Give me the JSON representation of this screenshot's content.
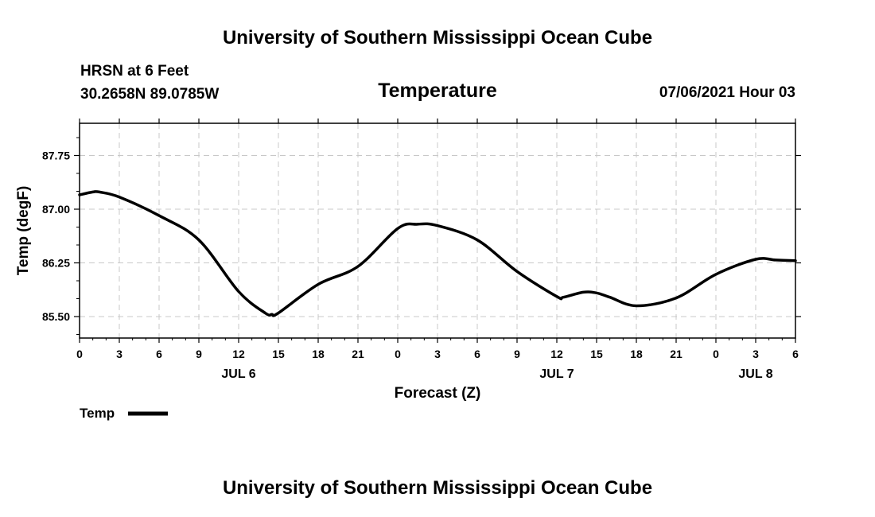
{
  "header": {
    "top_title": "University of Southern Mississippi Ocean Cube",
    "bottom_title": "University of Southern Mississippi Ocean Cube",
    "station_name": "HRSN at 6 Feet",
    "coordinates": "30.2658N  89.0785W",
    "datetime": "07/06/2021 Hour 03"
  },
  "chart_data": {
    "type": "line",
    "title": "Temperature",
    "xlabel": "Forecast (Z)",
    "ylabel": "Temp (degF)",
    "xlim": [
      0,
      54
    ],
    "ylim": [
      85.2,
      88.2
    ],
    "grid": true,
    "legend_position": "bottom-left",
    "y_ticks": [
      85.5,
      86.25,
      87.0,
      87.75
    ],
    "y_tick_labels": [
      "85.50",
      "86.25",
      "87.00",
      "87.75"
    ],
    "x_ticks": [
      0,
      3,
      6,
      9,
      12,
      15,
      18,
      21,
      24,
      27,
      30,
      33,
      36,
      39,
      42,
      45,
      48,
      51,
      54
    ],
    "x_tick_labels": [
      "0",
      "3",
      "6",
      "9",
      "12",
      "15",
      "18",
      "21",
      "0",
      "3",
      "6",
      "9",
      "12",
      "15",
      "18",
      "21",
      "0",
      "3",
      "6"
    ],
    "day_labels": [
      {
        "label": "JUL 6",
        "x": 12
      },
      {
        "label": "JUL 7",
        "x": 36
      },
      {
        "label": "JUL 8",
        "x": 51
      }
    ],
    "series": [
      {
        "name": "Temp",
        "color": "#000000",
        "x": [
          0,
          1,
          1.5,
          3,
          6,
          9,
          12,
          14,
          14.5,
          15,
          18,
          21,
          24,
          25.5,
          27,
          30,
          33,
          36,
          36.5,
          38,
          39,
          40,
          42,
          45,
          48,
          51,
          52.5,
          54
        ],
        "values": [
          87.2,
          87.24,
          87.24,
          87.17,
          86.91,
          86.57,
          85.85,
          85.55,
          85.53,
          85.55,
          85.95,
          86.2,
          86.73,
          86.79,
          86.77,
          86.57,
          86.13,
          85.78,
          85.77,
          85.84,
          85.83,
          85.77,
          85.65,
          85.76,
          86.09,
          86.3,
          86.29,
          86.28
        ]
      }
    ]
  }
}
